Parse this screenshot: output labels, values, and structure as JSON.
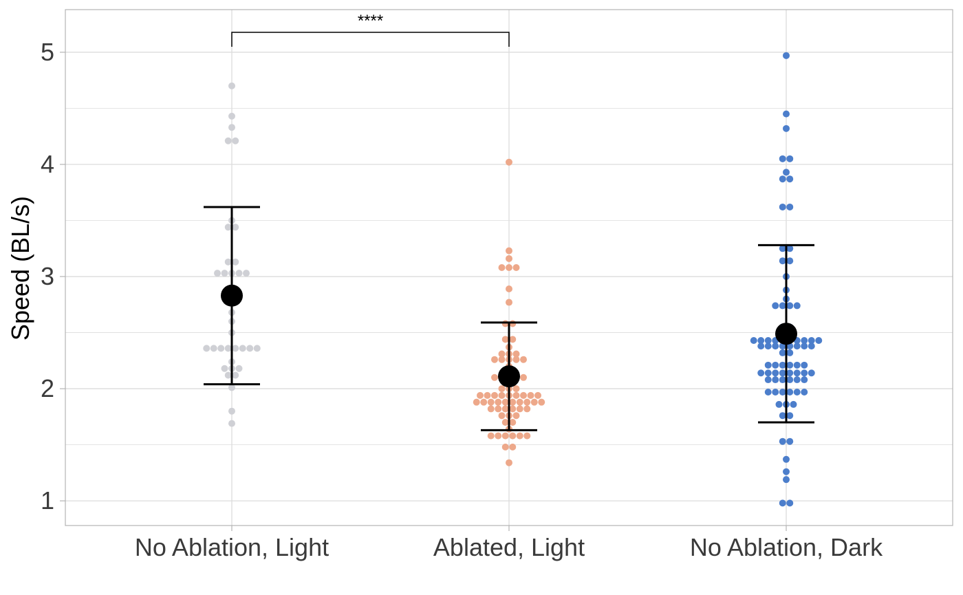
{
  "chart_data": {
    "type": "scatter",
    "subtype": "dot-plot with mean and standard-deviation error bars",
    "title": "",
    "xlabel": "",
    "ylabel": "Speed (BL/s)",
    "ylim": [
      0.78,
      5.38
    ],
    "y_ticks": [
      "1",
      "2",
      "3",
      "4",
      "5"
    ],
    "grid": true,
    "legend": "none",
    "categories": [
      "No Ablation, Light",
      "Ablated, Light",
      "No Ablation, Dark"
    ],
    "series": [
      {
        "color": "#cfd0d5",
        "mean": 2.83,
        "err_low": 2.04,
        "err_high": 3.62,
        "points": [
          1.69,
          1.8,
          2.01,
          2.12,
          2.12,
          2.18,
          2.18,
          2.18,
          2.24,
          2.36,
          2.36,
          2.36,
          2.36,
          2.36,
          2.36,
          2.36,
          2.36,
          2.5,
          2.6,
          2.68,
          2.82,
          2.9,
          3.03,
          3.03,
          3.03,
          3.03,
          3.03,
          3.13,
          3.13,
          3.44,
          3.44,
          3.5,
          4.21,
          4.21,
          4.33,
          4.43,
          4.7
        ]
      },
      {
        "color": "#eda88a",
        "mean": 2.11,
        "err_low": 1.63,
        "err_high": 2.59,
        "points": [
          1.34,
          1.48,
          1.48,
          1.58,
          1.58,
          1.58,
          1.58,
          1.58,
          1.58,
          1.64,
          1.7,
          1.7,
          1.76,
          1.76,
          1.76,
          1.82,
          1.82,
          1.82,
          1.82,
          1.82,
          1.82,
          1.88,
          1.88,
          1.88,
          1.88,
          1.88,
          1.88,
          1.88,
          1.88,
          1.88,
          1.88,
          1.94,
          1.94,
          1.94,
          1.94,
          1.94,
          1.94,
          1.94,
          1.94,
          1.94,
          2.0,
          2.0,
          2.0,
          2.05,
          2.1,
          2.1,
          2.1,
          2.1,
          2.1,
          2.2,
          2.26,
          2.26,
          2.26,
          2.26,
          2.26,
          2.31,
          2.31,
          2.31,
          2.37,
          2.44,
          2.44,
          2.58,
          2.58,
          2.77,
          2.89,
          3.08,
          3.08,
          3.08,
          3.16,
          3.23,
          4.02
        ]
      },
      {
        "color": "#4c7ecb",
        "mean": 2.49,
        "err_low": 1.7,
        "err_high": 3.28,
        "points": [
          0.98,
          0.98,
          1.19,
          1.26,
          1.37,
          1.53,
          1.53,
          1.76,
          1.76,
          1.86,
          1.86,
          1.86,
          1.97,
          1.97,
          1.97,
          1.97,
          1.97,
          1.97,
          2.08,
          2.08,
          2.08,
          2.08,
          2.08,
          2.08,
          2.14,
          2.14,
          2.14,
          2.14,
          2.14,
          2.14,
          2.14,
          2.14,
          2.21,
          2.21,
          2.21,
          2.21,
          2.21,
          2.21,
          2.32,
          2.32,
          2.38,
          2.38,
          2.38,
          2.38,
          2.38,
          2.38,
          2.38,
          2.38,
          2.43,
          2.43,
          2.43,
          2.43,
          2.43,
          2.43,
          2.43,
          2.43,
          2.43,
          2.43,
          2.55,
          2.55,
          2.74,
          2.74,
          2.74,
          2.74,
          2.8,
          2.88,
          3.0,
          3.14,
          3.14,
          3.25,
          3.25,
          3.62,
          3.62,
          3.87,
          3.87,
          3.93,
          4.05,
          4.05,
          4.32,
          4.45,
          4.97
        ]
      }
    ],
    "annotations": [
      {
        "from": "No Ablation, Light",
        "to": "Ablated, Light",
        "text": "****"
      }
    ]
  },
  "colors": {
    "grid": "#dcdcdc",
    "panel_border": "#b3b3b3",
    "mean_marker": "#000000",
    "error_bar": "#000000"
  }
}
